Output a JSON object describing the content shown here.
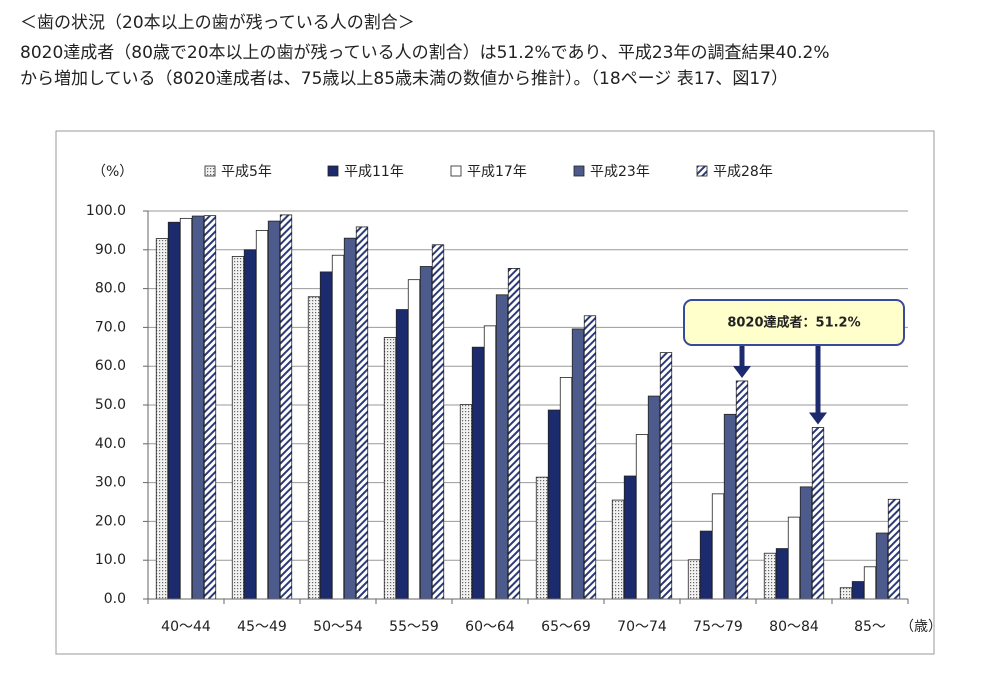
{
  "header": {
    "title": "＜歯の状況（20本以上の歯が残っている人の割合＞",
    "lines": [
      "8020達成者（80歳で20本以上の歯が残っている人の割合）は51.2%であり、平成23年の調査結果40.2%",
      "から増加している（8020達成者は、75歳以上85歳未満の数値から推計）。（18ページ 表17、図17）"
    ]
  },
  "chart_data": {
    "type": "bar",
    "y_label": "（%）",
    "x_label": "（歳）",
    "categories": [
      "40〜44",
      "45〜49",
      "50〜54",
      "55〜59",
      "60〜64",
      "65〜69",
      "70〜74",
      "75〜79",
      "80〜84",
      "85〜"
    ],
    "series": [
      {
        "name": "平成5年",
        "color": "#d9d9d9",
        "pattern": "dots",
        "values": [
          92.9,
          88.3,
          77.9,
          67.4,
          50.1,
          31.4,
          25.5,
          10.1,
          11.8,
          2.9
        ]
      },
      {
        "name": "平成11年",
        "color": "#1c2a6e",
        "values": [
          97.1,
          90.0,
          84.3,
          74.6,
          64.9,
          48.7,
          31.7,
          17.5,
          13.0,
          4.5
        ]
      },
      {
        "name": "平成17年",
        "color": "#ffffff",
        "values": [
          98.1,
          95.0,
          88.6,
          82.3,
          70.4,
          57.1,
          42.4,
          27.1,
          21.1,
          8.3
        ]
      },
      {
        "name": "平成23年",
        "color": "#4d5b8c",
        "values": [
          98.7,
          97.4,
          93.0,
          85.7,
          78.4,
          69.6,
          52.3,
          47.6,
          28.9,
          17.0
        ]
      },
      {
        "name": "平成28年",
        "color": "#2b3a7a",
        "pattern": "hatch",
        "values": [
          98.8,
          99.0,
          95.9,
          91.3,
          85.2,
          73.0,
          63.5,
          56.2,
          44.2,
          25.7
        ]
      }
    ],
    "ylim": [
      0,
      100
    ],
    "yticks": [
      {
        "value": 0,
        "label": "0.0"
      },
      {
        "value": 10,
        "label": "10.0"
      },
      {
        "value": 20,
        "label": "20.0"
      },
      {
        "value": 30,
        "label": "30.0"
      },
      {
        "value": 40,
        "label": "40.0"
      },
      {
        "value": 50,
        "label": "50.0"
      },
      {
        "value": 60,
        "label": "60.0"
      },
      {
        "value": 70,
        "label": "70.0"
      },
      {
        "value": 80,
        "label": "80.0"
      },
      {
        "value": 90,
        "label": "90.0"
      },
      {
        "value": 100,
        "label": "100.0"
      }
    ],
    "grid": true,
    "legend": "top",
    "annotation": "8020達成者：51.2%"
  }
}
